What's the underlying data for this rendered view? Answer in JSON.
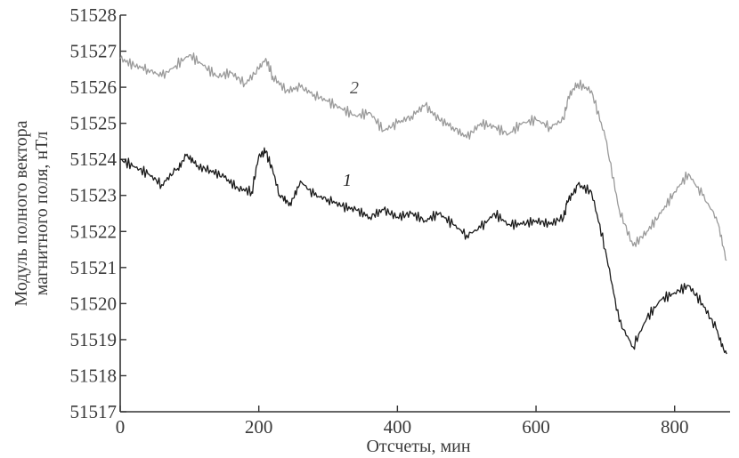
{
  "chart_data": {
    "type": "line",
    "title": "",
    "xlabel": "Отсчеты, мин",
    "ylabel_lines": [
      "Модуль полного вектора",
      "магнитного поля, нТл"
    ],
    "xlim": [
      0,
      880
    ],
    "ylim": [
      51517,
      51528
    ],
    "x_ticks": [
      0,
      200,
      400,
      600,
      800
    ],
    "y_ticks": [
      51517,
      51518,
      51519,
      51520,
      51521,
      51522,
      51523,
      51524,
      51525,
      51526,
      51527,
      51528
    ],
    "grid": false,
    "series": [
      {
        "name": "1",
        "color": "#1a1a1a",
        "x": [
          0,
          20,
          40,
          60,
          80,
          95,
          110,
          130,
          150,
          170,
          190,
          200,
          210,
          220,
          230,
          245,
          260,
          280,
          300,
          320,
          340,
          360,
          380,
          400,
          420,
          440,
          460,
          480,
          500,
          520,
          540,
          560,
          580,
          600,
          620,
          640,
          645,
          660,
          680,
          700,
          720,
          740,
          760,
          780,
          800,
          820,
          840,
          860,
          875
        ],
        "y": [
          51524.0,
          51523.8,
          51523.6,
          51523.3,
          51523.7,
          51524.1,
          51523.8,
          51523.7,
          51523.5,
          51523.2,
          51523.1,
          51524.1,
          51524.2,
          51523.7,
          51523.0,
          51522.8,
          51523.4,
          51523.0,
          51522.9,
          51522.7,
          51522.6,
          51522.4,
          51522.6,
          51522.4,
          51522.5,
          51522.3,
          51522.5,
          51522.2,
          51521.9,
          51522.1,
          51522.5,
          51522.2,
          51522.2,
          51522.3,
          51522.2,
          51522.4,
          51522.8,
          51523.3,
          51523.1,
          51521.5,
          51519.5,
          51518.8,
          51519.6,
          51520.1,
          51520.3,
          51520.5,
          51520.0,
          51519.3,
          51518.6
        ]
      },
      {
        "name": "2",
        "color": "#9a9a9a",
        "x": [
          0,
          20,
          40,
          60,
          80,
          100,
          120,
          140,
          160,
          180,
          200,
          210,
          220,
          240,
          260,
          280,
          300,
          320,
          340,
          360,
          380,
          400,
          420,
          440,
          460,
          480,
          500,
          520,
          540,
          560,
          580,
          600,
          620,
          640,
          645,
          660,
          680,
          700,
          720,
          740,
          760,
          780,
          800,
          820,
          840,
          860,
          875
        ],
        "y": [
          51526.8,
          51526.6,
          51526.5,
          51526.3,
          51526.6,
          51526.9,
          51526.6,
          51526.3,
          51526.4,
          51526.1,
          51526.5,
          51526.8,
          51526.3,
          51525.9,
          51526.0,
          51525.8,
          51525.6,
          51525.4,
          51525.2,
          51525.3,
          51524.8,
          51525.0,
          51525.2,
          51525.5,
          51525.1,
          51524.9,
          51524.6,
          51525.0,
          51524.9,
          51524.7,
          51525.0,
          51525.1,
          51524.9,
          51525.1,
          51525.6,
          51526.1,
          51525.9,
          51524.6,
          51522.6,
          51521.6,
          51522.0,
          51522.5,
          51523.1,
          51523.6,
          51523.0,
          51522.4,
          51521.2
        ]
      }
    ]
  }
}
